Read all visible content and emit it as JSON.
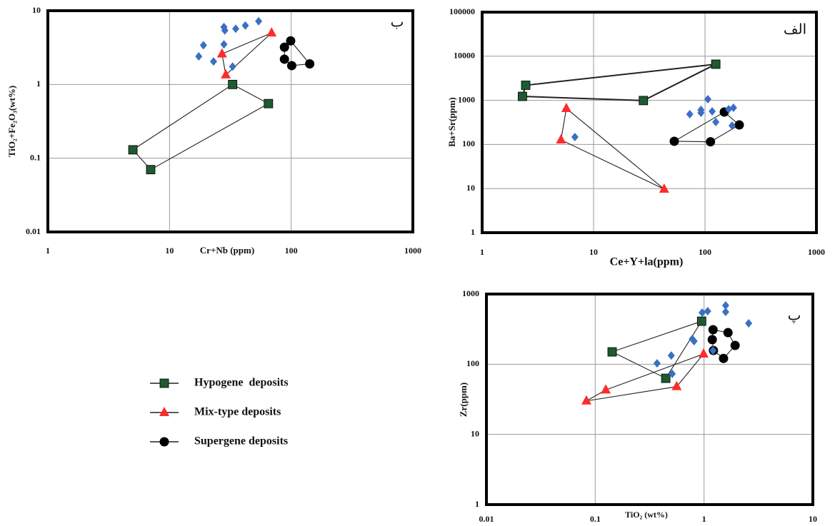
{
  "chart_data": [
    {
      "type": "scatter",
      "panel_label": "ب",
      "x_label": "Cr+Nb (ppm)",
      "y_label": "TiO₂+Fe₂O₃(wt%)",
      "log_x": true,
      "log_y": true,
      "grid": true,
      "xlim": [
        1,
        1000
      ],
      "ylim": [
        0.01,
        10
      ],
      "xticks": [
        1,
        10,
        100,
        1000
      ],
      "yticks": [
        0.01,
        0.1,
        1,
        10
      ],
      "series": [
        {
          "name": "Hypogene  deposits",
          "color": "#1e5a32",
          "marker": "square",
          "polygon": true,
          "x": [
            5,
            33,
            65,
            7
          ],
          "values": [
            0.13,
            1.0,
            0.55,
            0.07
          ]
        },
        {
          "name": "Mix-type deposits",
          "color": "#ff2b2b",
          "marker": "triangle",
          "polygon": true,
          "x": [
            27,
            69,
            29
          ],
          "values": [
            2.6,
            5.0,
            1.35
          ]
        },
        {
          "name": "Supergene deposits",
          "color": "#000000",
          "marker": "circle",
          "polygon": true,
          "x": [
            88,
            99,
            142,
            101,
            88
          ],
          "values": [
            3.2,
            3.9,
            1.9,
            1.8,
            2.2
          ]
        },
        {
          "color": "#3a6fc4",
          "marker": "diamond",
          "polygon": false,
          "x": [
            17.4,
            19,
            23,
            28,
            28.5,
            28,
            33,
            35,
            42,
            54
          ],
          "values": [
            2.4,
            3.4,
            2.05,
            6.0,
            5.4,
            3.5,
            1.75,
            5.7,
            6.3,
            7.2
          ]
        }
      ]
    },
    {
      "type": "scatter",
      "panel_label": "الف",
      "x_label": "Ce+Y+la(ppm)",
      "y_label": "Ba+Sr(ppm)",
      "log_x": true,
      "log_y": true,
      "grid": true,
      "xlim": [
        1,
        1000
      ],
      "ylim": [
        1,
        100000
      ],
      "xticks": [
        1,
        10,
        100,
        1000
      ],
      "yticks": [
        1,
        10,
        100,
        1000,
        10000,
        100000
      ],
      "series": [
        {
          "color": "#1e5a32",
          "marker": "square",
          "polygon": true,
          "x": [
            2.46,
            125,
            28,
            2.3
          ],
          "values": [
            2200,
            6600,
            990,
            1230
          ]
        },
        {
          "color": "#ff2b2b",
          "marker": "triangle",
          "polygon": true,
          "x": [
            5.7,
            5.1,
            43
          ],
          "values": [
            655,
            127,
            9.7
          ]
        },
        {
          "color": "#000000",
          "marker": "circle",
          "polygon": true,
          "x": [
            53,
            149,
            203,
            112
          ],
          "values": [
            118,
            543,
            277,
            115
          ]
        },
        {
          "color": "#3a6fc4",
          "marker": "diamond",
          "polygon": false,
          "x": [
            6.8,
            73,
            92,
            92,
            106,
            116,
            125,
            163,
            175,
            180
          ],
          "values": [
            147,
            485,
            522,
            607,
            1060,
            563,
            322,
            630,
            267,
            679
          ]
        }
      ]
    },
    {
      "type": "scatter",
      "panel_label": "پ",
      "x_label": "TiO₂ (wt%)",
      "y_label": "Zr(ppm)",
      "log_x": true,
      "log_y": true,
      "grid": true,
      "xlim": [
        0.01,
        10
      ],
      "ylim": [
        1,
        1000
      ],
      "xticks": [
        0.01,
        0.1,
        1,
        10
      ],
      "yticks": [
        1,
        10,
        100,
        1000
      ],
      "series": [
        {
          "color": "#1e5a32",
          "marker": "square",
          "polygon": true,
          "x": [
            0.143,
            0.95,
            0.445
          ],
          "values": [
            150,
            410,
            63
          ]
        },
        {
          "color": "#ff2b2b",
          "marker": "triangle",
          "polygon": true,
          "x": [
            0.083,
            0.125,
            0.99,
            0.56
          ],
          "values": [
            30,
            43,
            140,
            48
          ]
        },
        {
          "color": "#000000",
          "marker": "circle",
          "polygon": true,
          "x": [
            1.21,
            1.66,
            1.93,
            1.51,
            1.22,
            1.19
          ],
          "values": [
            310,
            282,
            185,
            121,
            157,
            224
          ]
        },
        {
          "color": "#3a6fc4",
          "marker": "diamond",
          "polygon": false,
          "x": [
            0.37,
            0.5,
            0.96,
            1.08,
            0.78,
            0.81,
            0.51,
            1.58,
            1.58,
            2.57,
            1.21
          ],
          "values": [
            103,
            133,
            544,
            570,
            229,
            213,
            73,
            688,
            557,
            383,
            157
          ]
        }
      ]
    }
  ]
}
